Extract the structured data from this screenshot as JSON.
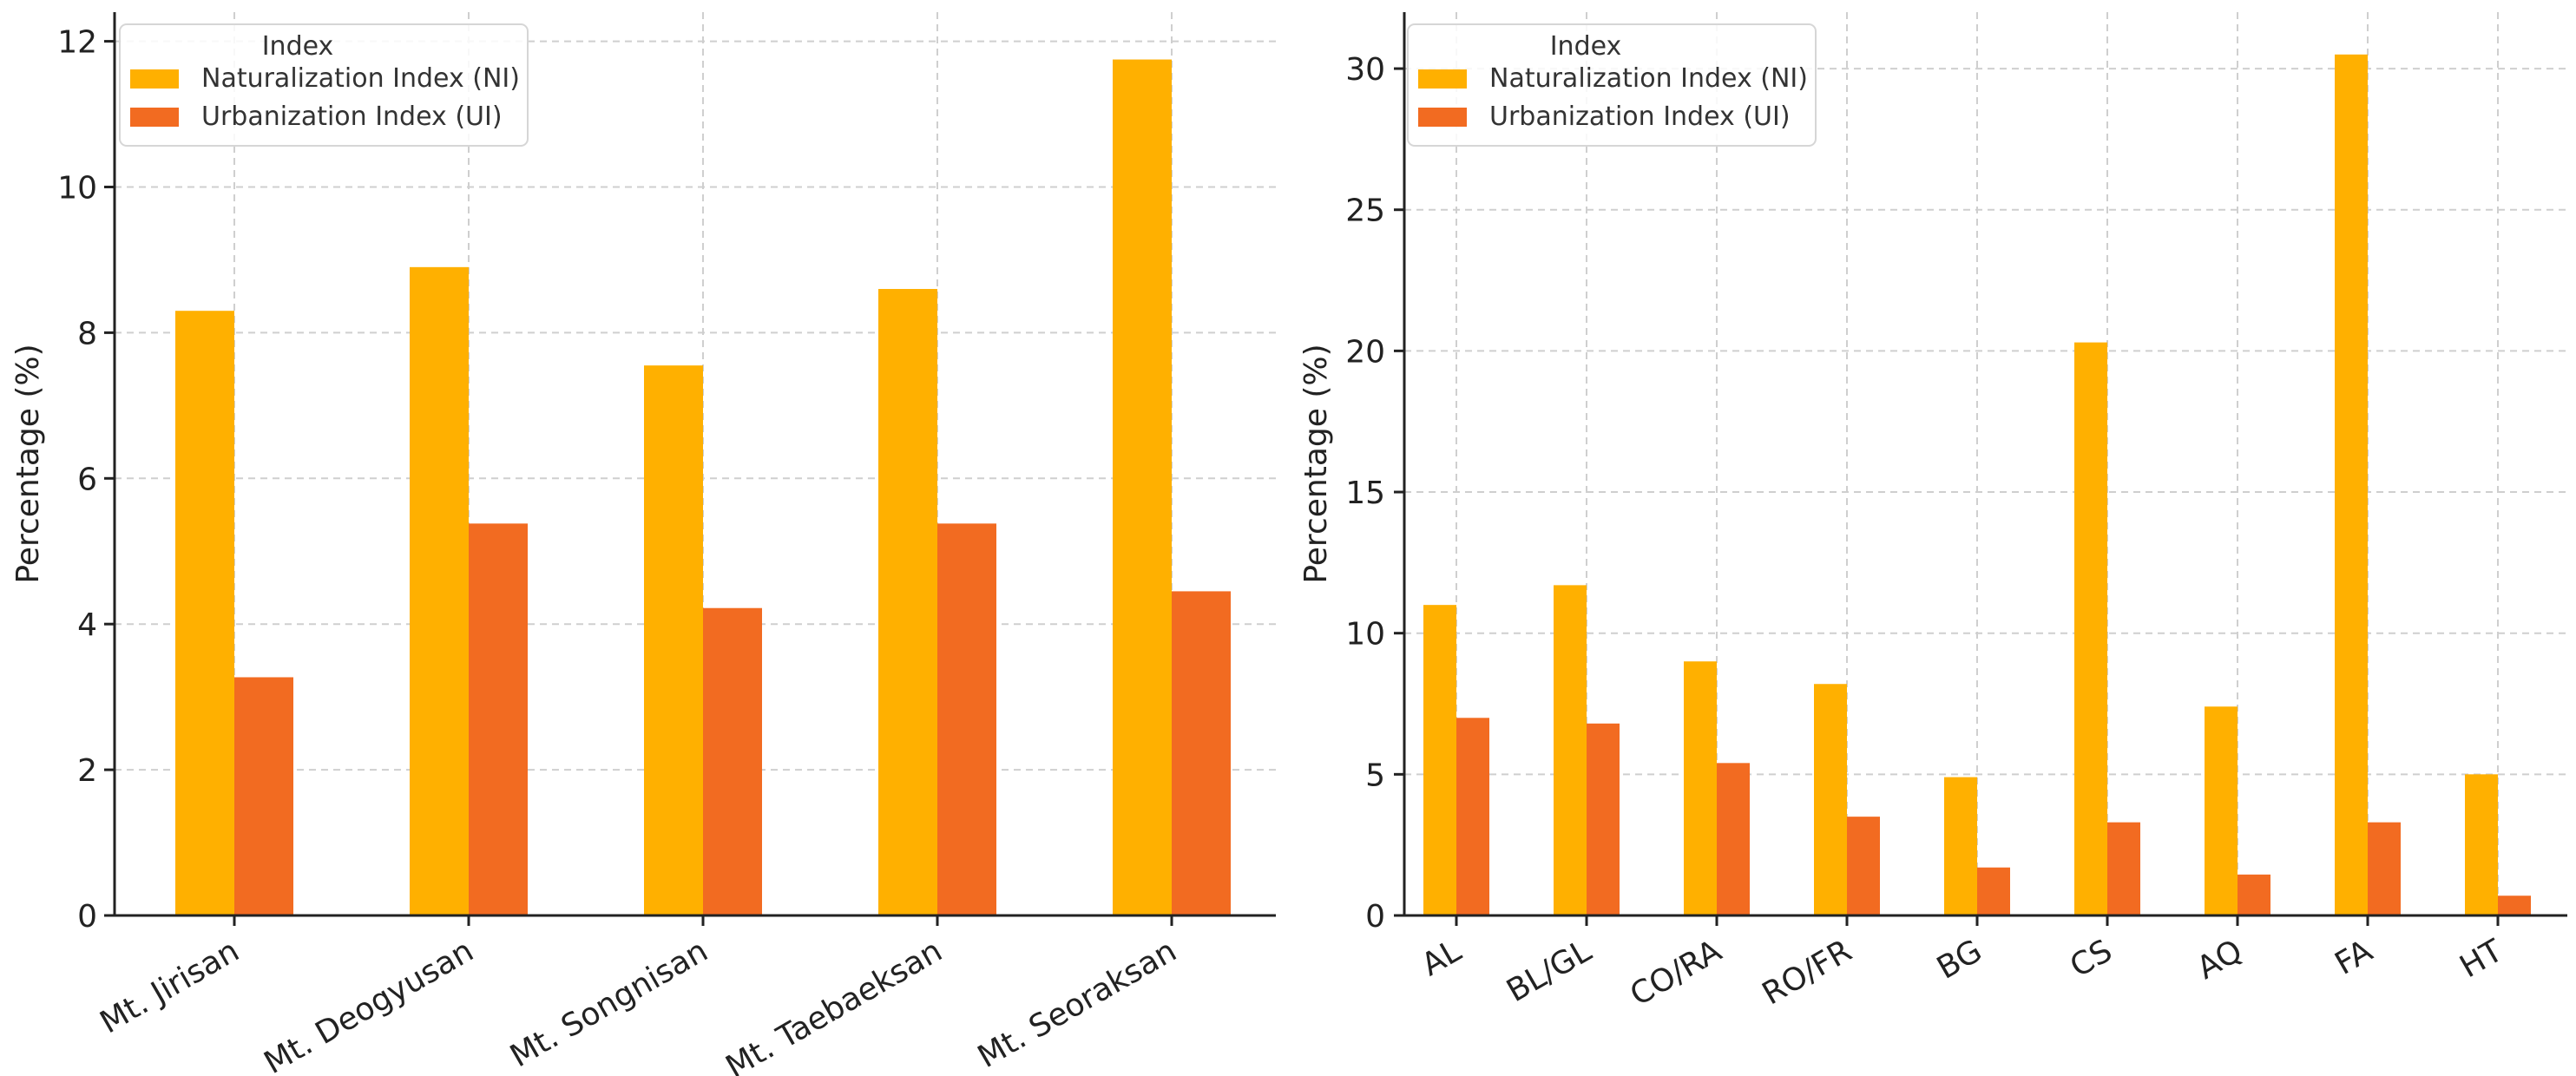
{
  "colors": {
    "ni": "#FFB000",
    "ui": "#F26B21"
  },
  "chart_data": [
    {
      "type": "bar",
      "ylabel": "Percentage (%)",
      "ylim": [
        0,
        12.4
      ],
      "yticks": [
        0,
        2,
        4,
        6,
        8,
        10,
        12
      ],
      "yticklabels": [
        "0",
        "2",
        "4",
        "6",
        "8",
        "10",
        "12"
      ],
      "categories": [
        "Mt. Jirisan",
        "Mt. Deogyusan",
        "Mt. Songnisan",
        "Mt. Taebaeksan",
        "Mt. Seoraksan"
      ],
      "legend": {
        "title": "Index",
        "position": "top-left"
      },
      "series": [
        {
          "name": "Naturalization Index (NI)",
          "values": [
            8.3,
            8.9,
            7.55,
            8.6,
            11.75
          ]
        },
        {
          "name": "Urbanization Index (UI)",
          "values": [
            3.27,
            5.38,
            4.22,
            5.38,
            4.45
          ]
        }
      ],
      "grid": true
    },
    {
      "type": "bar",
      "ylabel": "Percentage (%)",
      "ylim": [
        0,
        32
      ],
      "yticks": [
        0,
        5,
        10,
        15,
        20,
        25,
        30
      ],
      "yticklabels": [
        "0",
        "5",
        "10",
        "15",
        "20",
        "25",
        "30"
      ],
      "categories": [
        "AL",
        "BL/GL",
        "CO/RA",
        "RO/FR",
        "BG",
        "CS",
        "AQ",
        "FA",
        "HT"
      ],
      "legend": {
        "title": "Index",
        "position": "top-left"
      },
      "series": [
        {
          "name": "Naturalization Index (NI)",
          "values": [
            11.0,
            11.7,
            9.0,
            8.2,
            4.9,
            20.3,
            7.4,
            30.5,
            5.0
          ]
        },
        {
          "name": "Urbanization Index (UI)",
          "values": [
            7.0,
            6.8,
            5.4,
            3.5,
            1.7,
            3.3,
            1.45,
            3.3,
            0.7
          ]
        }
      ],
      "grid": true
    }
  ]
}
